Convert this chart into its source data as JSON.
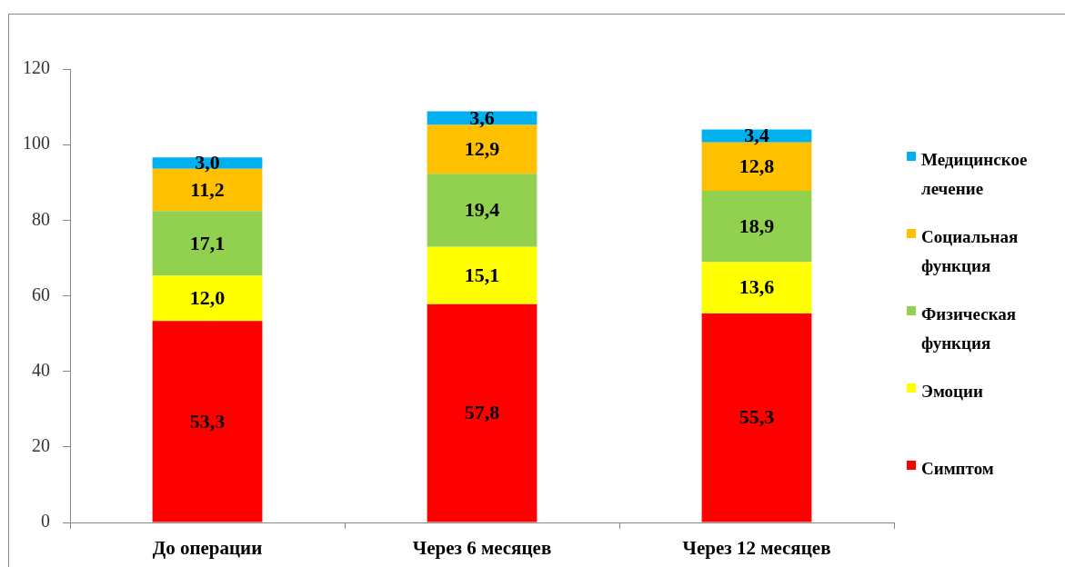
{
  "chart_data": {
    "type": "bar",
    "stacked": true,
    "categories": [
      "До операции",
      "Через 6 месяцев",
      "Через 12 месяцев"
    ],
    "series": [
      {
        "name": "Симптом",
        "color": "#ff0000",
        "values": [
          53.3,
          57.8,
          55.3
        ],
        "value_labels": [
          "53,3",
          "57,8",
          "55,3"
        ]
      },
      {
        "name": "Эмоции",
        "color": "#ffff00",
        "values": [
          12.0,
          15.1,
          13.6
        ],
        "value_labels": [
          "12,0",
          "15,1",
          "13,6"
        ]
      },
      {
        "name": "Физическая функция",
        "color": "#92d050",
        "values": [
          17.1,
          19.4,
          18.9
        ],
        "value_labels": [
          "17,1",
          "19,4",
          "18,9"
        ]
      },
      {
        "name": "Социальная функция",
        "color": "#ffc000",
        "values": [
          11.2,
          12.9,
          12.8
        ],
        "value_labels": [
          "11,2",
          "12,9",
          "12,8"
        ]
      },
      {
        "name": "Медицинское лечение",
        "color": "#00b0f0",
        "values": [
          3.0,
          3.6,
          3.4
        ],
        "value_labels": [
          "3,0",
          "3,6",
          "3,4"
        ]
      }
    ],
    "ylim": [
      0,
      120
    ],
    "yticks": [
      0,
      20,
      40,
      60,
      80,
      100,
      120
    ],
    "grid": false,
    "legend": "right"
  }
}
